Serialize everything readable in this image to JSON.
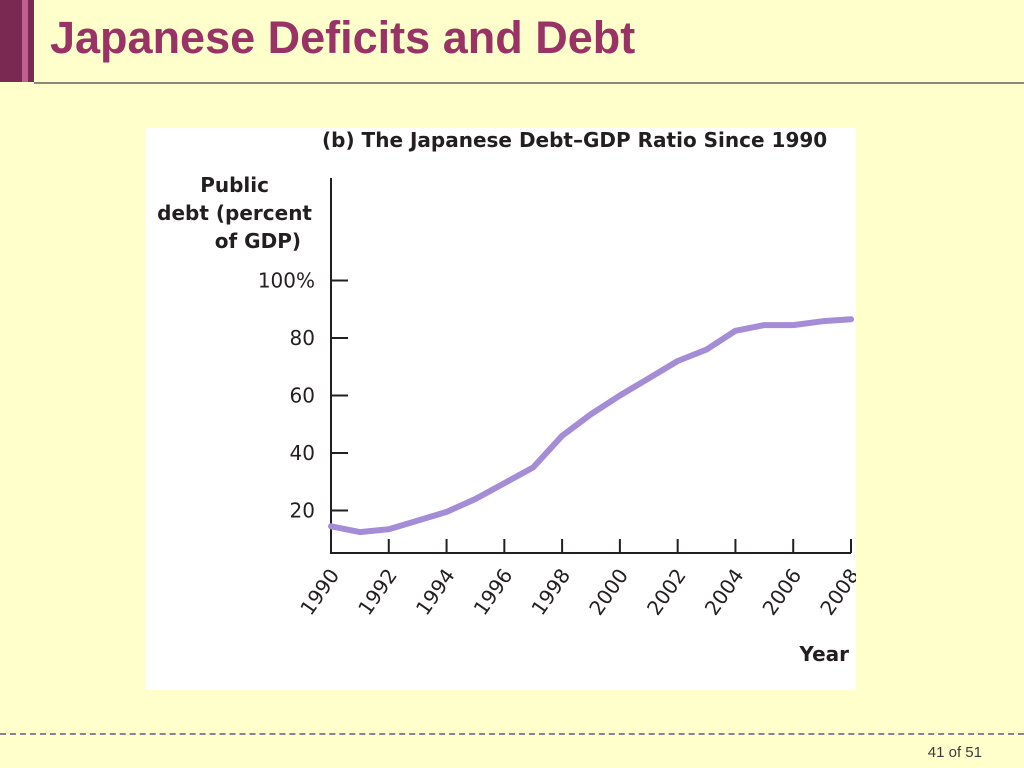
{
  "slide": {
    "title": "Japanese Deficits and Debt",
    "page_number": "41 of 51"
  },
  "colors": {
    "background": "#ffffcc",
    "title": "#993366",
    "accent_dark": "#7a2952",
    "accent_light": "#c06090",
    "line": "#a58cd6",
    "axis": "#231f20"
  },
  "chart_data": {
    "type": "line",
    "title": "(b) The Japanese Debt–GDP Ratio Since 1990",
    "ylabel_lines": [
      "Public",
      "debt (percent",
      "of GDP)"
    ],
    "xlabel": "Year",
    "yticks": [
      {
        "value": 20,
        "label": "20"
      },
      {
        "value": 40,
        "label": "40"
      },
      {
        "value": 60,
        "label": "60"
      },
      {
        "value": 80,
        "label": "80"
      },
      {
        "value": 100,
        "label": "100%"
      }
    ],
    "xticks": [
      1990,
      1992,
      1994,
      1996,
      1998,
      2000,
      2002,
      2004,
      2006,
      2008
    ],
    "xlim": [
      1990,
      2008
    ],
    "ylim": [
      0,
      100
    ],
    "grid": false,
    "series": [
      {
        "x": [
          1990,
          1991,
          1992,
          1993,
          1994,
          1995,
          1996,
          1997,
          1998,
          1999,
          2000,
          2001,
          2002,
          2003,
          2004,
          2005,
          2006,
          2007,
          2008
        ],
        "values": [
          14.5,
          12.5,
          13.5,
          16.5,
          19.5,
          24,
          29.5,
          35,
          46,
          53.5,
          60,
          66,
          72,
          76,
          82.5,
          84.5,
          84.5,
          85.8,
          86.5
        ]
      }
    ]
  }
}
